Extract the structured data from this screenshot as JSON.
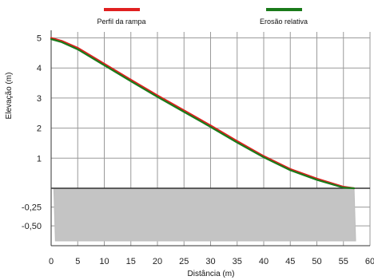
{
  "chart_data": [
    {
      "type": "line",
      "title": "",
      "xlabel": "Distância (m)",
      "ylabel": "Elevação (m)",
      "xlim": [
        0,
        60
      ],
      "ylim": [
        0,
        5.2
      ],
      "x_ticks": [
        0,
        5,
        10,
        15,
        20,
        25,
        30,
        35,
        40,
        45,
        50,
        55,
        60
      ],
      "x_tick_labels": [
        "0",
        "5",
        "10",
        "15",
        "20",
        "25",
        "30",
        "35",
        "40",
        "45",
        "50",
        "55",
        "60"
      ],
      "y_ticks": [
        1,
        2,
        3,
        4,
        5
      ],
      "y_tick_labels": [
        "1",
        "2",
        "3",
        "4",
        "5"
      ],
      "grid": true,
      "legend_position": "top",
      "series": [
        {
          "name": "Perfil da rampa",
          "color": "#e02020",
          "x": [
            0,
            2,
            5,
            10,
            15,
            20,
            25,
            30,
            35,
            40,
            45,
            50,
            55,
            57
          ],
          "y": [
            5.0,
            4.9,
            4.67,
            4.14,
            3.61,
            3.09,
            2.59,
            2.09,
            1.57,
            1.07,
            0.64,
            0.32,
            0.05,
            0.0
          ]
        },
        {
          "name": "Erosão relativa",
          "color": "#1a7a1a",
          "x": [
            0,
            2,
            5,
            10,
            15,
            20,
            25,
            30,
            35,
            40,
            45,
            50,
            55,
            57
          ],
          "y": [
            4.96,
            4.86,
            4.62,
            4.09,
            3.56,
            3.04,
            2.54,
            2.04,
            1.52,
            1.03,
            0.6,
            0.28,
            0.02,
            0.0
          ]
        }
      ]
    },
    {
      "type": "area",
      "title": "",
      "xlim": [
        0,
        60
      ],
      "ylim": [
        -0.7,
        0
      ],
      "y_ticks": [
        -0.25,
        -0.5
      ],
      "y_tick_labels": [
        "-0,25",
        "-0,50"
      ],
      "grid": true,
      "series": [
        {
          "name": "",
          "color": "#c4c4c4",
          "x": [
            0.5,
            57
          ],
          "y": [
            -0.7,
            -0.7
          ]
        }
      ]
    }
  ]
}
